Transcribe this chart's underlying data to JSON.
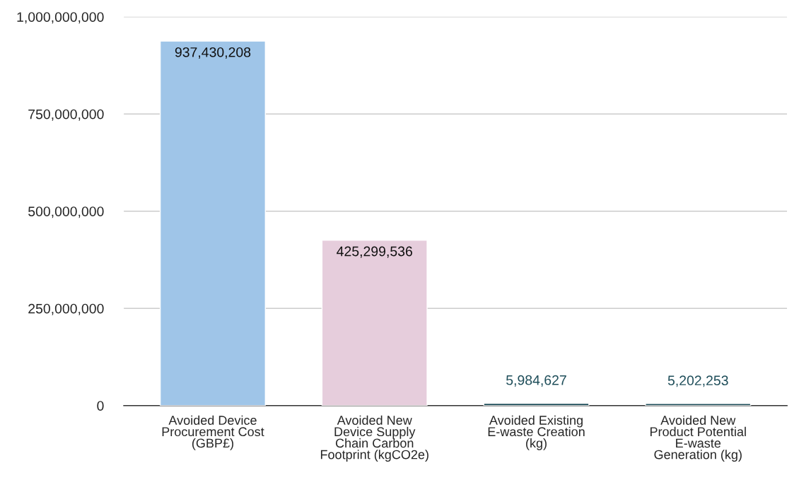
{
  "chart_data": {
    "type": "bar",
    "categories": [
      "Avoided Device\nProcurement Cost\n(GBP£)",
      "Avoided New\nDevice Supply\nChain Carbon\nFootprint (kgCO2e)",
      "Avoided Existing\nE-waste Creation\n(kg)",
      "Avoided New\nProduct Potential\nE-waste\nGeneration (kg)"
    ],
    "values": [
      937430208,
      425299536,
      5984627,
      5202253
    ],
    "colors": [
      "#9fc5e8",
      "#e6cddc",
      "#1f4e5a",
      "#1f4e5a"
    ],
    "ylim": [
      0,
      1000000000
    ],
    "yticks": [
      {
        "value": 0,
        "label": "0"
      },
      {
        "value": 250000000,
        "label": "250,000,000"
      },
      {
        "value": 500000000,
        "label": "500,000,000"
      },
      {
        "value": 750000000,
        "label": "750,000,000"
      },
      {
        "value": 1000000000,
        "label": "1,000,000,000"
      }
    ],
    "value_labels": [
      "937,430,208",
      "425,299,536",
      "5,984,627",
      "5,202,253"
    ],
    "grid": "y",
    "legend": false
  }
}
